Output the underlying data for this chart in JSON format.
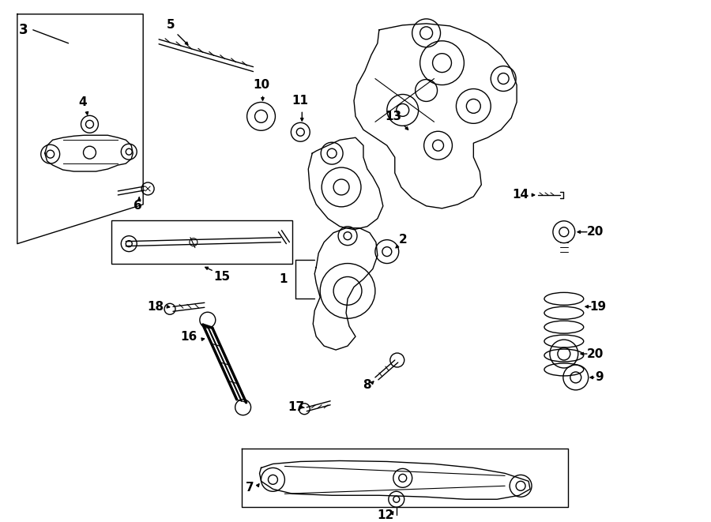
{
  "background_color": "#ffffff",
  "line_color": "#000000",
  "text_color": "#000000",
  "figsize": [
    9.0,
    6.61
  ],
  "dpi": 100,
  "lw": 1.0,
  "fs": 10.5
}
